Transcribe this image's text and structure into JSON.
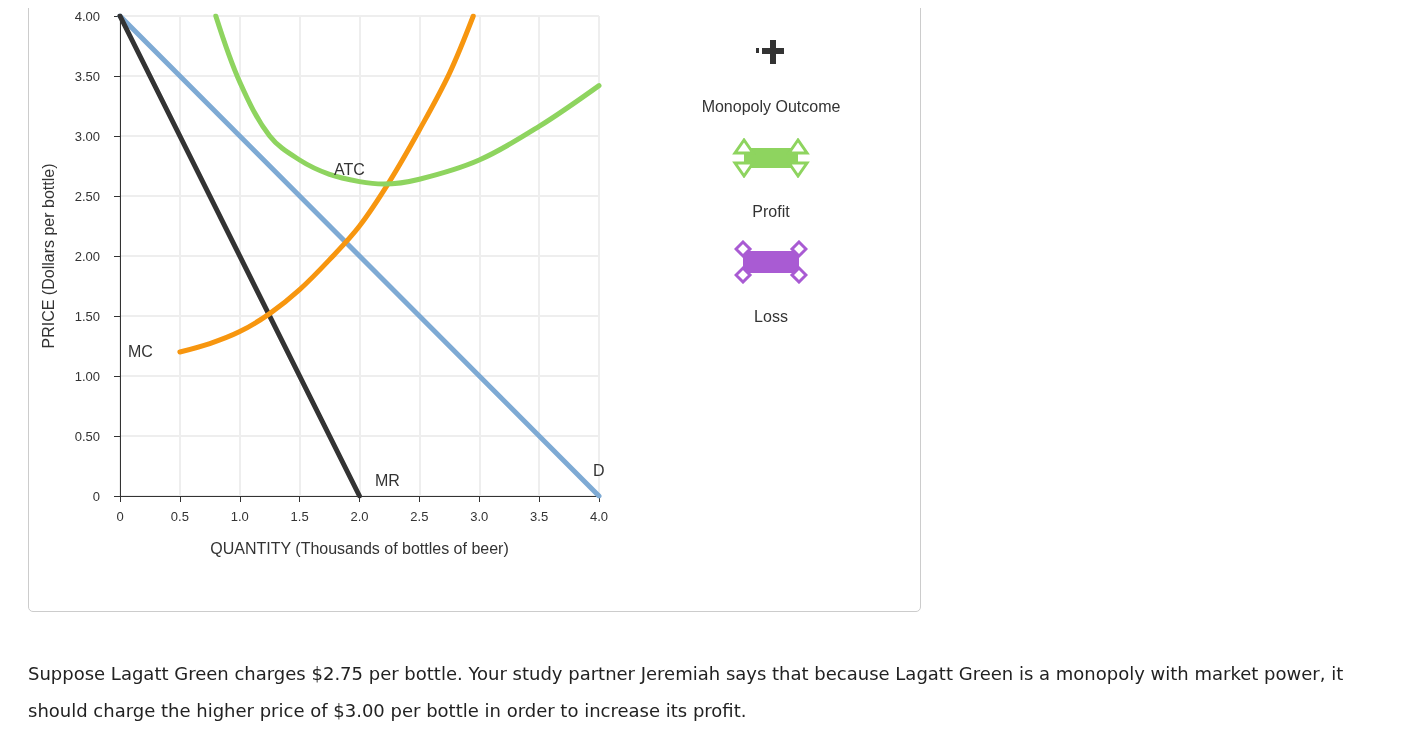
{
  "chart_data": {
    "type": "line",
    "xlabel": "QUANTITY (Thousands of bottles of beer)",
    "ylabel": "PRICE (Dollars per bottle)",
    "series": [
      {
        "color": "#7eaad4",
        "x": [
          0,
          4
        ],
        "values": [
          4,
          0
        ]
      },
      {
        "color": "#333333",
        "x": [
          0,
          2
        ],
        "values": [
          4,
          0
        ]
      },
      {
        "color": "#f7960f",
        "x": [
          0.5,
          0.75,
          1.0,
          1.25,
          1.5,
          1.75,
          2.0,
          2.25,
          2.5,
          2.75,
          2.95
        ],
        "values": [
          1.2,
          1.27,
          1.37,
          1.52,
          1.72,
          1.97,
          2.25,
          2.62,
          3.05,
          3.52,
          4.0
        ]
      },
      {
        "color": "#8ed45f",
        "x": [
          0.8,
          1.0,
          1.25,
          1.5,
          1.75,
          2.0,
          2.2,
          2.5,
          3.0,
          3.5,
          4.0
        ],
        "values": [
          4.0,
          3.45,
          3.0,
          2.8,
          2.68,
          2.62,
          2.6,
          2.64,
          2.8,
          3.08,
          3.42
        ]
      }
    ],
    "xlim": [
      0,
      4
    ],
    "xticks": [
      0,
      {
        "value": 0.5,
        "label": "0.5"
      },
      {
        "value": 1,
        "label": "1.0"
      },
      {
        "value": 1.5,
        "label": "1.5"
      },
      {
        "value": 2,
        "label": "2.0"
      },
      {
        "value": 2.5,
        "label": "2.5"
      },
      {
        "value": 3,
        "label": "3.0"
      },
      {
        "value": 3.5,
        "label": "3.5"
      },
      {
        "value": 4,
        "label": "4.0"
      }
    ],
    "ylim": [
      0,
      4
    ],
    "yticks": [
      0,
      {
        "value": 0.5,
        "label": "0.50"
      },
      {
        "value": 1,
        "label": "1.00"
      },
      {
        "value": 1.5,
        "label": "1.50"
      },
      {
        "value": 2,
        "label": "2.00"
      },
      {
        "value": 2.5,
        "label": "2.50"
      },
      {
        "value": 3,
        "label": "3.00"
      },
      {
        "value": 3.5,
        "label": "3.50"
      },
      {
        "value": 4,
        "label": "4.00"
      }
    ],
    "grid": true,
    "marker": "none",
    "line_style": "solid",
    "annotations": [
      "MC",
      "ATC",
      "MR",
      "D",
      "Monopoly Outcome",
      "Profit",
      "Loss",
      "Suppose Lagatt Green charges $2.75 per bottle. Your study partner Jeremiah says that because Lagatt Green is a monopoly with market power, it should charge the higher price of $3.00 per bottle in order to increase its profit."
    ]
  }
}
